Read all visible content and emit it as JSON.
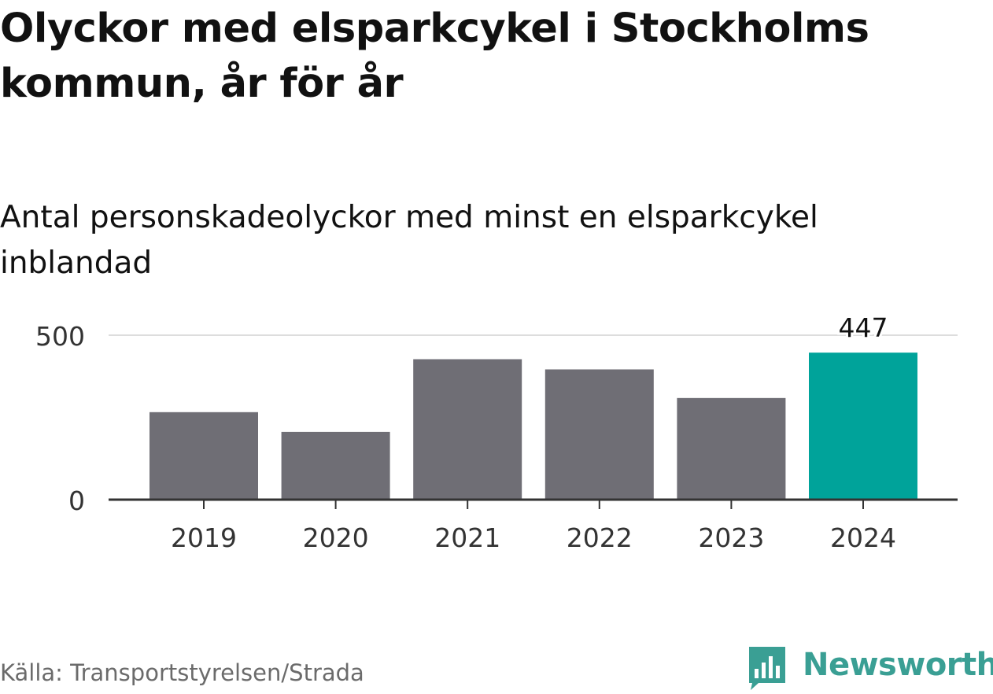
{
  "title": "Olyckor med elsparkcykel i Stockholms kommun, år för år",
  "subtitle": "Antal personskadeolyckor med minst en elsparkcykel inblandad",
  "source": "Källa: Transportstyrelsen/Strada",
  "brand": {
    "name": "Newsworthy",
    "color": "#3a9f94"
  },
  "colors": {
    "bar": "#6f6e75",
    "highlight": "#00a39a",
    "axis": "#333333",
    "grid": "#dddddd"
  },
  "chart_data": {
    "type": "bar",
    "categories": [
      "2019",
      "2020",
      "2021",
      "2022",
      "2023",
      "2024"
    ],
    "values": [
      266,
      206,
      427,
      396,
      309,
      447
    ],
    "highlight_index": 5,
    "data_labels": [
      {
        "index": 5,
        "text": "447"
      }
    ],
    "yticks": [
      0,
      500
    ],
    "ylim": [
      0,
      500
    ],
    "xlabel": "",
    "ylabel": "",
    "grid": true
  }
}
